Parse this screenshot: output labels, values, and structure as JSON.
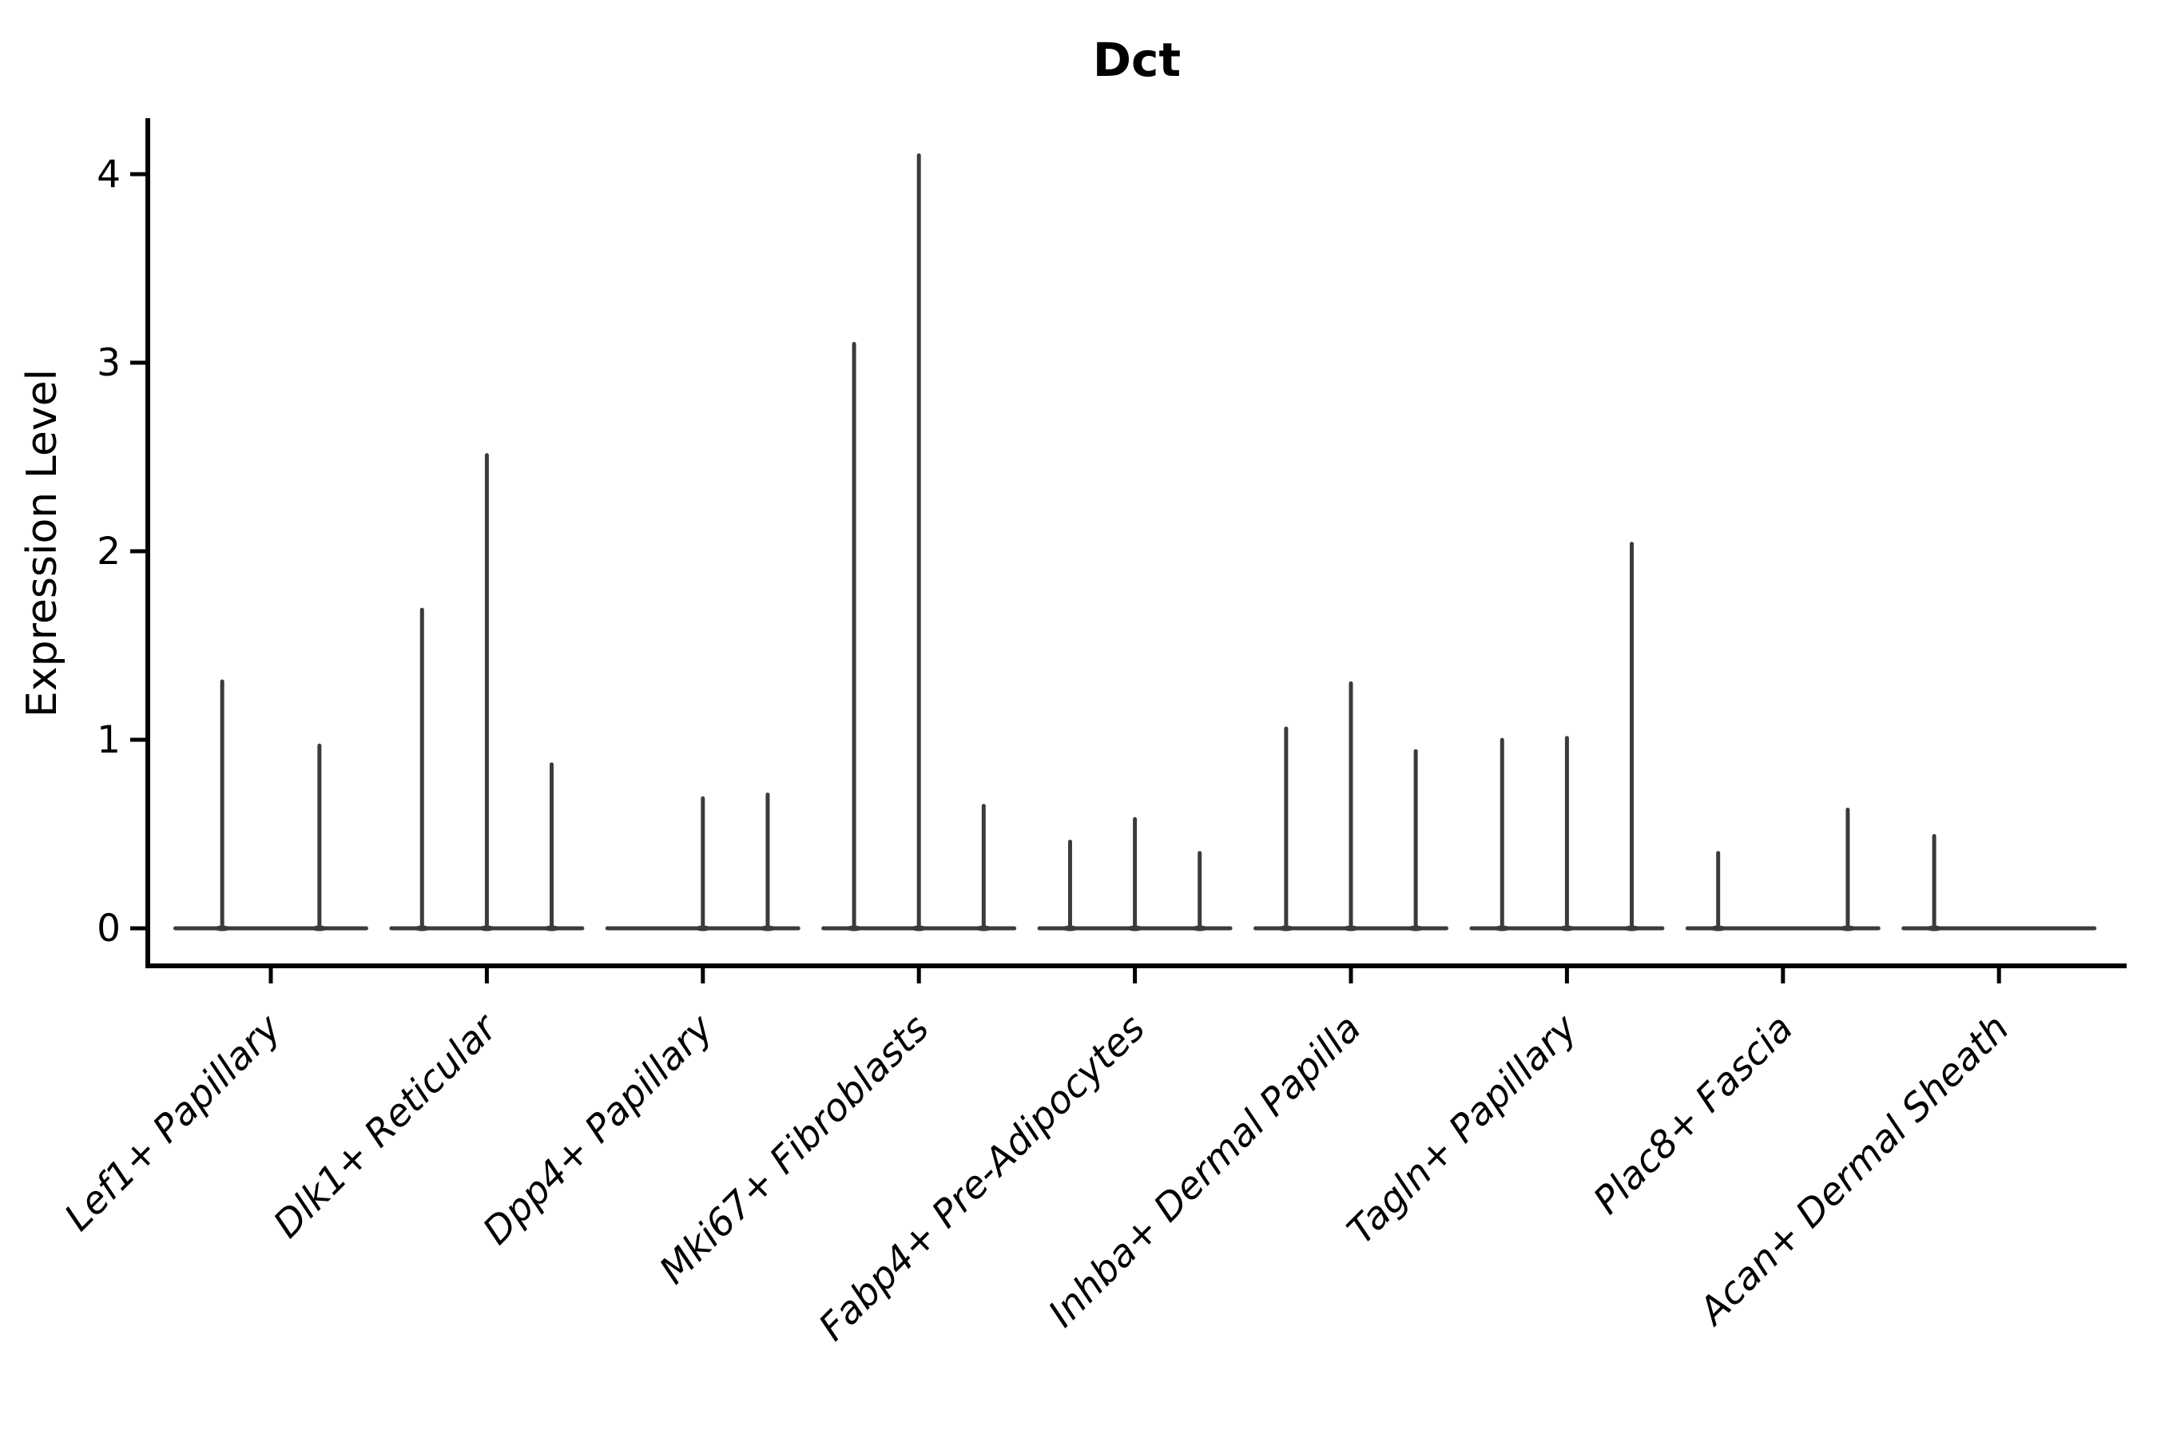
{
  "figure": {
    "title": "Dct",
    "y_axis_label": "Expression Level",
    "style": {
      "violin_color": "#3b3b3b",
      "axis_color": "#000000",
      "text_color": "#000000",
      "background": "#ffffff"
    }
  },
  "chart_data": {
    "type": "violin",
    "title": "Dct",
    "xlabel": "",
    "ylabel": "Expression Level",
    "ylim": [
      -0.2,
      4.3
    ],
    "yticks": [
      0,
      1,
      2,
      3,
      4
    ],
    "grid": false,
    "legend_position": "none",
    "x_tick_rotation_deg": 45,
    "categories": [
      "Lef1+ Papillary",
      "Dlk1+ Reticular",
      "Dpp4+ Papillary",
      "Mki67+ Fibroblasts",
      "Fabp4+ Pre-Adipocytes",
      "Inhba+ Dermal Papilla",
      "Tagln+ Papillary",
      "Plac8+ Fascia",
      "Acan+ Dermal Sheath"
    ],
    "series": [
      {
        "category": "Lef1+ Papillary",
        "violins": [
          {
            "offset": -0.225,
            "max": 1.32
          },
          {
            "offset": 0.225,
            "max": 0.98
          }
        ]
      },
      {
        "category": "Dlk1+ Reticular",
        "violins": [
          {
            "offset": -0.3,
            "max": 1.7
          },
          {
            "offset": 0,
            "max": 2.52
          },
          {
            "offset": 0.3,
            "max": 0.88
          }
        ]
      },
      {
        "category": "Dpp4+ Papillary",
        "violins": [
          {
            "offset": -0.3,
            "max": 0
          },
          {
            "offset": 0,
            "max": 0.7
          },
          {
            "offset": 0.3,
            "max": 0.72
          }
        ]
      },
      {
        "category": "Mki67+ Fibroblasts",
        "violins": [
          {
            "offset": -0.3,
            "max": 3.11
          },
          {
            "offset": 0,
            "max": 4.11
          },
          {
            "offset": 0.3,
            "max": 0.66
          }
        ]
      },
      {
        "category": "Fabp4+ Pre-Adipocytes",
        "violins": [
          {
            "offset": -0.3,
            "max": 0.47
          },
          {
            "offset": 0,
            "max": 0.59
          },
          {
            "offset": 0.3,
            "max": 0.41
          }
        ]
      },
      {
        "category": "Inhba+ Dermal Papilla",
        "violins": [
          {
            "offset": -0.3,
            "max": 1.07
          },
          {
            "offset": 0,
            "max": 1.31
          },
          {
            "offset": 0.3,
            "max": 0.95
          }
        ]
      },
      {
        "category": "Tagln+ Papillary",
        "violins": [
          {
            "offset": -0.3,
            "max": 1.01
          },
          {
            "offset": 0,
            "max": 1.02
          },
          {
            "offset": 0.3,
            "max": 2.05
          }
        ]
      },
      {
        "category": "Plac8+ Fascia",
        "violins": [
          {
            "offset": -0.3,
            "max": 0.41
          },
          {
            "offset": 0,
            "max": 0
          },
          {
            "offset": 0.3,
            "max": 0.64
          }
        ]
      },
      {
        "category": "Acan+ Dermal Sheath",
        "violins": [
          {
            "offset": -0.3,
            "max": 0.5
          },
          {
            "offset": 0,
            "max": 0
          },
          {
            "offset": 0.3,
            "max": 0
          }
        ]
      }
    ]
  }
}
